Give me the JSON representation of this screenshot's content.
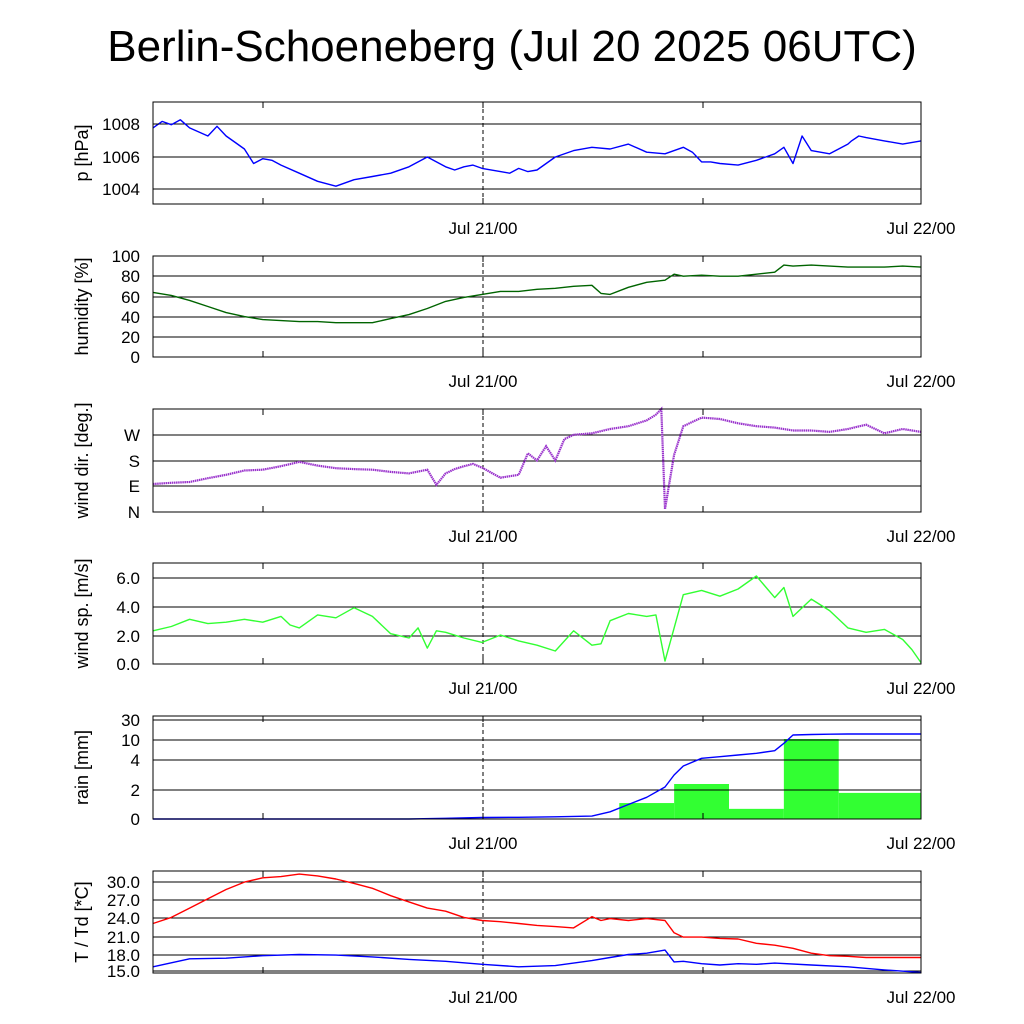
{
  "title": "Berlin-Schoeneberg (Jul 20 2025 06UTC)",
  "chart_data": [
    {
      "type": "line",
      "ylabel": "p [hPa]",
      "yticks": [
        "1004",
        "1006",
        "1008"
      ],
      "ylim": [
        1003.1,
        1009.4
      ],
      "x_tick_labels": [
        "Jul 21/00",
        "Jul 22/00"
      ],
      "x_range_hours": [
        0,
        42
      ],
      "series": [
        {
          "color": "#0000ff",
          "x": [
            0,
            0.5,
            1,
            1.5,
            2,
            3,
            3.5,
            4,
            4.5,
            5,
            5.5,
            6,
            6.5,
            7,
            8,
            9,
            10,
            11,
            12,
            13,
            14,
            15,
            16,
            16.5,
            17,
            17.5,
            18,
            19,
            19.5,
            20,
            20.5,
            21,
            22,
            23,
            24,
            25,
            26,
            27,
            28,
            29,
            29.5,
            30,
            30.5,
            31,
            32,
            33,
            34,
            34.5,
            35,
            35.5,
            36,
            37,
            38,
            38.2,
            38.6,
            39,
            40,
            41,
            42
          ],
          "values": [
            1007.8,
            1008.2,
            1008.0,
            1008.3,
            1007.8,
            1007.3,
            1007.9,
            1007.3,
            1006.9,
            1006.5,
            1005.6,
            1005.9,
            1005.8,
            1005.5,
            1005.0,
            1004.5,
            1004.2,
            1004.6,
            1004.8,
            1005.0,
            1005.4,
            1006.0,
            1005.4,
            1005.2,
            1005.4,
            1005.5,
            1005.3,
            1005.1,
            1005.0,
            1005.3,
            1005.1,
            1005.2,
            1006.0,
            1006.4,
            1006.6,
            1006.5,
            1006.8,
            1006.3,
            1006.2,
            1006.6,
            1006.3,
            1005.7,
            1005.7,
            1005.6,
            1005.5,
            1005.8,
            1006.2,
            1006.6,
            1005.6,
            1007.3,
            1006.4,
            1006.2,
            1006.8,
            1007.0,
            1007.3,
            1007.2,
            1007.0,
            1006.8,
            1007.0
          ]
        }
      ]
    },
    {
      "type": "line",
      "ylabel": "humidity [%]",
      "yticks": [
        "0",
        "20",
        "40",
        "60",
        "80",
        "100"
      ],
      "ylim": [
        0,
        100
      ],
      "x_tick_labels": [
        "Jul 21/00",
        "Jul 22/00"
      ],
      "x_range_hours": [
        0,
        42
      ],
      "series": [
        {
          "color": "#006400",
          "x": [
            0,
            1,
            2,
            3,
            4,
            5,
            6,
            7,
            8,
            9,
            10,
            11,
            12,
            13,
            14,
            15,
            16,
            17,
            18,
            19,
            20,
            21,
            22,
            23,
            24,
            24.5,
            25,
            26,
            27,
            28,
            28.5,
            29,
            30,
            31,
            32,
            33,
            34,
            34.5,
            35,
            36,
            37,
            38,
            39,
            40,
            41,
            42
          ],
          "values": [
            64,
            61,
            56,
            50,
            44,
            40,
            37,
            36,
            35,
            35,
            34,
            34,
            34,
            38,
            42,
            48,
            55,
            59,
            62,
            65,
            65,
            67,
            68,
            70,
            71,
            63,
            62,
            69,
            74,
            76,
            82,
            80,
            81,
            80,
            80,
            82,
            84,
            91,
            90,
            91,
            90,
            89,
            89,
            89,
            90,
            89
          ]
        }
      ]
    },
    {
      "type": "scatter",
      "ylabel": "wind dir. [deg.]",
      "yticks": [
        "N",
        "E",
        "S",
        "W"
      ],
      "ylim": [
        0,
        360
      ],
      "x_tick_labels": [
        "Jul 21/00",
        "Jul 22/00"
      ],
      "x_range_hours": [
        0,
        42
      ],
      "series": [
        {
          "color": "#9932cc",
          "x": [
            0,
            1,
            2,
            3,
            4,
            5,
            6,
            7,
            8,
            9,
            10,
            11,
            12,
            13,
            14,
            15,
            15.5,
            16,
            16.5,
            17,
            17.5,
            18,
            19,
            20,
            20.5,
            21,
            21.5,
            22,
            22.5,
            23,
            24,
            25,
            26,
            27,
            27.5,
            27.8,
            28,
            28.5,
            29,
            30,
            31,
            32,
            33,
            34,
            35,
            36,
            37,
            38,
            39,
            40,
            41,
            42
          ],
          "values": [
            98,
            102,
            105,
            118,
            130,
            145,
            148,
            160,
            175,
            162,
            153,
            150,
            148,
            140,
            135,
            148,
            95,
            135,
            150,
            160,
            168,
            155,
            120,
            130,
            205,
            180,
            230,
            180,
            255,
            270,
            275,
            290,
            300,
            320,
            340,
            360,
            10,
            200,
            300,
            330,
            325,
            310,
            300,
            295,
            285,
            285,
            280,
            290,
            305,
            275,
            290,
            280
          ]
        }
      ]
    },
    {
      "type": "line",
      "ylabel": "wind sp. [m/s]",
      "yticks": [
        "0.0",
        "2.0",
        "4.0",
        "6.0"
      ],
      "ylim": [
        0,
        7
      ],
      "x_tick_labels": [
        "Jul 21/00",
        "Jul 22/00"
      ],
      "x_range_hours": [
        0,
        42
      ],
      "series": [
        {
          "color": "#32ff32",
          "x": [
            0,
            1,
            2,
            3,
            4,
            5,
            6,
            7,
            7.5,
            8,
            9,
            10,
            11,
            12,
            13,
            14,
            14.5,
            15,
            15.5,
            16,
            17,
            18,
            19,
            20,
            21,
            22,
            23,
            24,
            24.5,
            25,
            26,
            27,
            27.5,
            28,
            29,
            30,
            31,
            32,
            33,
            34,
            34.5,
            35,
            36,
            37,
            38,
            39,
            40,
            41,
            41.5,
            42
          ],
          "values": [
            2.3,
            2.6,
            3.1,
            2.8,
            2.9,
            3.1,
            2.9,
            3.3,
            2.7,
            2.5,
            3.4,
            3.2,
            3.9,
            3.3,
            2.1,
            1.8,
            2.5,
            1.1,
            2.3,
            2.2,
            1.8,
            1.5,
            2.0,
            1.6,
            1.3,
            0.9,
            2.3,
            1.3,
            1.4,
            3.0,
            3.5,
            3.3,
            3.4,
            0.2,
            4.8,
            5.1,
            4.7,
            5.2,
            6.1,
            4.6,
            5.3,
            3.3,
            4.5,
            3.7,
            2.5,
            2.2,
            2.4,
            1.7,
            1.0,
            0.1
          ]
        }
      ]
    },
    {
      "type": "bar",
      "ylabel": "rain [mm]",
      "yticks": [
        "0",
        "2",
        "4",
        "10",
        "30"
      ],
      "ylim": [
        0,
        30
      ],
      "x_tick_labels": [
        "Jul 21/00",
        "Jul 22/00"
      ],
      "x_range_hours": [
        0,
        42
      ],
      "bars": [
        {
          "x0": 13.5,
          "x1": 16.5,
          "value": 0.04,
          "color": "#32ff32"
        },
        {
          "x0": 25.5,
          "x1": 28.5,
          "value": 1.1,
          "color": "#32ff32"
        },
        {
          "x0": 28.5,
          "x1": 31.5,
          "value": 2.4,
          "color": "#32ff32"
        },
        {
          "x0": 31.5,
          "x1": 34.5,
          "value": 0.7,
          "color": "#32ff32"
        },
        {
          "x0": 34.5,
          "x1": 37.5,
          "value": 11,
          "color": "#32ff32"
        },
        {
          "x0": 37.5,
          "x1": 42,
          "value": 1.8,
          "color": "#32ff32"
        }
      ],
      "series": [
        {
          "color": "#0000ff",
          "x": [
            0,
            14,
            16,
            18,
            20,
            22,
            24,
            25,
            26,
            27,
            28,
            28.5,
            29,
            30,
            31,
            32,
            33,
            34,
            34.5,
            35,
            36,
            37,
            38,
            42
          ],
          "values": [
            0,
            0,
            0.05,
            0.1,
            0.12,
            0.15,
            0.2,
            0.5,
            1.0,
            1.5,
            2.2,
            3.0,
            3.6,
            4.5,
            5.0,
            5.5,
            6.0,
            6.8,
            9.0,
            15,
            15.5,
            15.8,
            16,
            16
          ]
        }
      ]
    },
    {
      "type": "line",
      "ylabel": "T / Td [*C]",
      "yticks": [
        "15.0",
        "18.0",
        "21.0",
        "24.0",
        "27.0",
        "30.0"
      ],
      "ylim": [
        15,
        31.5
      ],
      "x_tick_labels": [
        "Jul 21/00",
        "Jul 22/00"
      ],
      "x_range_hours": [
        0,
        42
      ],
      "series": [
        {
          "color": "#ff0000",
          "x": [
            0,
            1,
            2,
            3,
            4,
            5,
            6,
            7,
            8,
            9,
            10,
            11,
            12,
            13,
            14,
            15,
            16,
            17,
            18,
            19,
            20,
            21,
            22,
            23,
            24,
            24.5,
            25,
            26,
            27,
            28,
            28.5,
            29,
            30,
            31,
            32,
            33,
            34,
            35,
            36,
            37,
            38,
            39,
            40,
            41,
            42
          ],
          "values": [
            23.0,
            24.0,
            25.5,
            27.0,
            28.5,
            29.7,
            30.4,
            30.6,
            31.0,
            30.7,
            30.2,
            29.5,
            28.7,
            27.5,
            26.5,
            25.5,
            25.0,
            24.0,
            23.5,
            23.3,
            23.0,
            22.7,
            22.5,
            22.3,
            24.1,
            23.5,
            23.8,
            23.5,
            23.8,
            23.5,
            21.5,
            20.8,
            20.8,
            20.6,
            20.5,
            19.8,
            19.5,
            19.0,
            18.2,
            17.8,
            17.7,
            17.5,
            17.5,
            17.5,
            17.5
          ]
        },
        {
          "color": "#0000ff",
          "x": [
            0,
            2,
            4,
            6,
            8,
            10,
            12,
            14,
            16,
            18,
            20,
            22,
            24,
            25,
            26,
            27,
            28,
            28.5,
            29,
            30,
            31,
            32,
            33,
            34,
            36,
            38,
            40,
            42
          ],
          "values": [
            16.0,
            17.3,
            17.4,
            17.8,
            18.0,
            17.9,
            17.6,
            17.2,
            16.9,
            16.4,
            16.0,
            16.2,
            17.0,
            17.5,
            18.0,
            18.2,
            18.7,
            16.8,
            16.9,
            16.5,
            16.3,
            16.5,
            16.4,
            16.6,
            16.3,
            16.0,
            15.5,
            15.1
          ]
        }
      ]
    }
  ]
}
